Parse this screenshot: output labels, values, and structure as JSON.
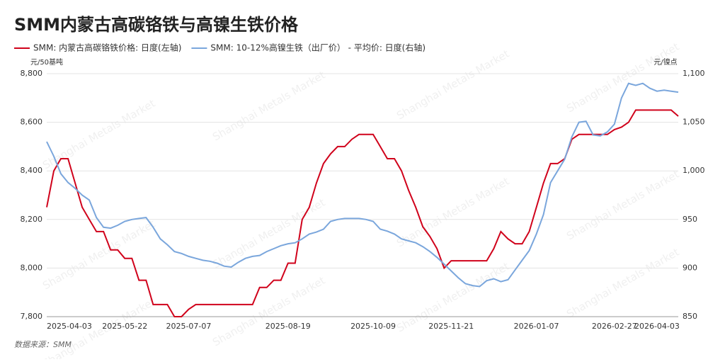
{
  "chart_data": {
    "type": "line",
    "title": "SMM内蒙古高碳铬铁与高镍生铁价格",
    "y_label": "元/50基吨",
    "y2_label": "元/镍点",
    "source": "数据来源：SMM",
    "watermark": "Shanghai Metals Market",
    "grid": true,
    "categories": [
      "2025-04-03",
      null,
      null,
      null,
      null,
      null,
      null,
      null,
      null,
      null,
      null,
      "2025-05-22",
      null,
      null,
      null,
      null,
      null,
      null,
      null,
      null,
      "2025-07-07",
      null,
      null,
      null,
      null,
      null,
      null,
      null,
      null,
      null,
      null,
      null,
      null,
      null,
      "2025-08-19",
      null,
      null,
      null,
      null,
      null,
      null,
      null,
      null,
      null,
      null,
      null,
      "2025-10-09",
      null,
      null,
      null,
      null,
      null,
      null,
      null,
      null,
      null,
      null,
      "2025-11-21",
      null,
      null,
      null,
      null,
      null,
      null,
      null,
      null,
      null,
      null,
      null,
      "2026-01-07",
      null,
      null,
      null,
      null,
      null,
      null,
      null,
      null,
      null,
      null,
      "2026-02-27",
      null,
      null,
      null,
      null,
      null,
      "2026-04-03",
      null,
      null,
      null
    ],
    "ylim": [
      7800,
      8800
    ],
    "yticks": [
      {
        "value": 7800,
        "label": "7,800"
      },
      {
        "value": 8000,
        "label": "8,000"
      },
      {
        "value": 8200,
        "label": "8,200"
      },
      {
        "value": 8400,
        "label": "8,400"
      },
      {
        "value": 8600,
        "label": "8,600"
      },
      {
        "value": 8800,
        "label": "8,800"
      }
    ],
    "y2lim": [
      850,
      1100
    ],
    "y2ticks": [
      850,
      900,
      950,
      {
        "value": 1000,
        "label": "1,000"
      },
      {
        "value": 1050,
        "label": "1,050"
      },
      {
        "value": 1100,
        "label": "1,100"
      }
    ],
    "series": [
      {
        "name": "SMM: 内蒙古高碳铬铁价格: 日度(左轴)",
        "color": "#d0021b",
        "values": [
          8250,
          8400,
          8450,
          8450,
          8350,
          8250,
          8200,
          8150,
          8150,
          8075,
          8075,
          8040,
          8040,
          7950,
          7950,
          7850,
          7850,
          7850,
          7800,
          7800,
          7830,
          7850,
          7850,
          7850,
          7850,
          7850,
          7850,
          7850,
          7850,
          7850,
          7920,
          7920,
          7950,
          7950,
          8020,
          8020,
          8200,
          8250,
          8350,
          8430,
          8470,
          8500,
          8500,
          8530,
          8550,
          8550,
          8550,
          8500,
          8450,
          8450,
          8400,
          8320,
          8250,
          8170,
          8130,
          8080,
          8000,
          8030,
          8030,
          8030,
          8030,
          8030,
          8030,
          8080,
          8150,
          8120,
          8100,
          8100,
          8150,
          8250,
          8350,
          8430,
          8430,
          8450,
          8530,
          8550,
          8550,
          8550,
          8550,
          8550,
          8570,
          8580,
          8600,
          8650,
          8650,
          8650,
          8650,
          8650,
          8650,
          8625
        ]
      },
      {
        "name": "SMM: 10-12%高镍生铁（出厂价） - 平均价: 日度(右轴)",
        "color": "#7aa6dc",
        "axis": "y2",
        "values": [
          1030,
          1015,
          997,
          988,
          982,
          975,
          970,
          952,
          942,
          941,
          944,
          948,
          950,
          951,
          952,
          942,
          930,
          924,
          917,
          915,
          912,
          910,
          908,
          907,
          905,
          902,
          901,
          906,
          910,
          912,
          913,
          917,
          920,
          923,
          925,
          926,
          930,
          935,
          937,
          940,
          948,
          950,
          951,
          951,
          951,
          950,
          948,
          940,
          938,
          935,
          930,
          928,
          926,
          922,
          917,
          911,
          904,
          897,
          890,
          884,
          882,
          881,
          887,
          889,
          886,
          888,
          898,
          908,
          918,
          935,
          955,
          988,
          1000,
          1012,
          1035,
          1050,
          1051,
          1037,
          1036,
          1040,
          1048,
          1075,
          1090,
          1088,
          1090,
          1085,
          1082,
          1083,
          1082,
          1081
        ]
      }
    ]
  }
}
